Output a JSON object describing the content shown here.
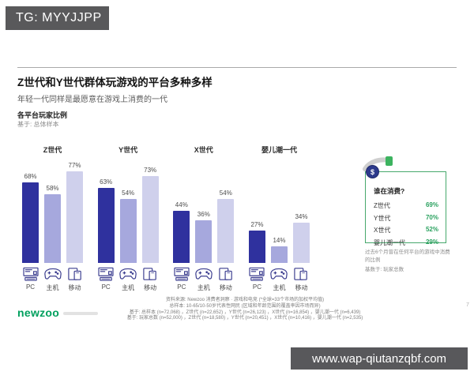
{
  "badge": {
    "text": "TG: MYYJJPP"
  },
  "header": {
    "title": "Z世代和Y世代群体玩游戏的平台多种多样",
    "subtitle": "年轻一代同样是最愿意在游戏上消费的一代"
  },
  "chart_data": {
    "type": "bar",
    "title": "各平台玩家比例",
    "base_note": "基于: 总体样本",
    "unit": "%",
    "ylim": [
      0,
      80
    ],
    "platforms": [
      "PC",
      "主机",
      "移动"
    ],
    "bar_colors": [
      "#2f319e",
      "#a6a8dd",
      "#cfd0ec"
    ],
    "groups": [
      {
        "label": "Z世代",
        "values": [
          68,
          58,
          77
        ],
        "values_pct": [
          "68%",
          "58%",
          "77%"
        ]
      },
      {
        "label": "Y世代",
        "values": [
          63,
          54,
          73
        ],
        "values_pct": [
          "63%",
          "54%",
          "73%"
        ]
      },
      {
        "label": "X世代",
        "values": [
          44,
          36,
          54
        ],
        "values_pct": [
          "44%",
          "36%",
          "54%"
        ]
      },
      {
        "label": "婴儿潮一代",
        "values": [
          27,
          14,
          34
        ],
        "values_pct": [
          "27%",
          "14%",
          "34%"
        ]
      }
    ]
  },
  "spend_box": {
    "title": "谁在消费?",
    "coin_symbol": "$",
    "accent_color": "#2aa15f",
    "rows": [
      {
        "label": "Z世代",
        "value": "69%"
      },
      {
        "label": "Y世代",
        "value": "70%"
      },
      {
        "label": "X世代",
        "value": "52%"
      },
      {
        "label": "婴儿潮一代",
        "value": "29%"
      }
    ],
    "footnote": "过去6个月曾在任何平台的游戏中消费的比例",
    "base_note": "基数于: 玩家总数"
  },
  "footer": {
    "logo": "newzoo",
    "page_number": "7",
    "source_lines": [
      "资料来源: Newzoo 消费者洞察 · 游戏和电竞 (*全球=33个市场的加权平均值)",
      "总样本: 10-65/10-50岁代表性网民 (区域和年龄范围的覆盖率因市场而异)",
      "基于: 总样本 (n=72,068) ，Z世代 (n=22,652) ，Y世代 (n=26,123) ，X世代 (n=16,854) ，婴儿潮一代 (n=6,439)",
      "基于: 玩家总数 (n=52,000) ，Z世代 (n=18,580) ，Y世代 (n=20,451) ，X世代 (n=10,416) ，婴儿潮一代 (n=2,535)"
    ]
  },
  "watermark": {
    "text": "www.wap-qiutanzqbf.com"
  }
}
